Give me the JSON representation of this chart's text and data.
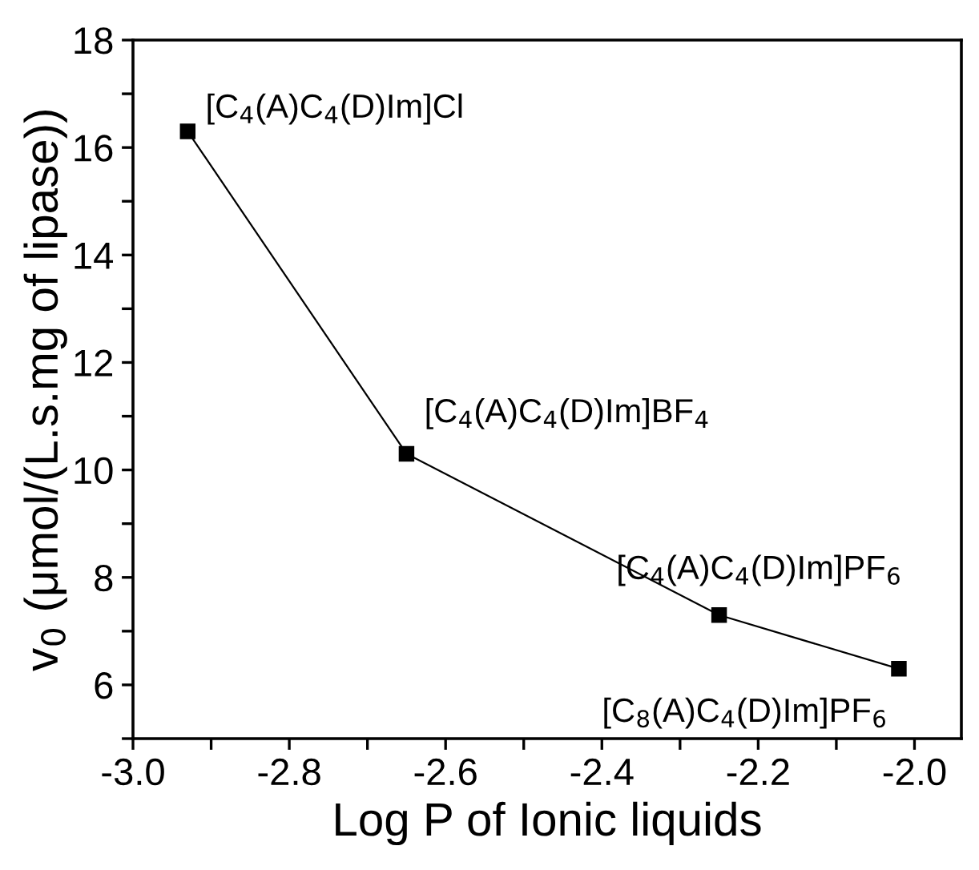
{
  "chart_data": {
    "type": "line",
    "xlabel": "Log P of Ionic liquids",
    "ylabel": "v$_{0}$ (μmol/(L.s.mg of lipase))",
    "x": [
      -2.93,
      -2.65,
      -2.25,
      -2.02
    ],
    "series": [
      {
        "color": "#000000",
        "values": [
          16.3,
          10.3,
          7.3,
          6.3
        ]
      }
    ],
    "marker": "square",
    "line_style": "solid",
    "grid": false,
    "legend": false,
    "xlim": [
      -3.0,
      -1.94
    ],
    "ylim": [
      5,
      18
    ],
    "xticks": [
      {
        "value": -3,
        "label": "-3.0"
      },
      {
        "value": -2.9,
        "label": null
      },
      -2.8,
      {
        "value": -2.7,
        "label": null
      },
      -2.6,
      {
        "value": -2.5,
        "label": null
      },
      -2.4,
      {
        "value": -2.3,
        "label": null
      },
      -2.2,
      {
        "value": -2.1,
        "label": null
      },
      {
        "value": -2,
        "label": "-2.0"
      }
    ],
    "yticks": [
      {
        "value": 5,
        "label": null
      },
      6,
      {
        "value": 7,
        "label": null
      },
      8,
      {
        "value": 9,
        "label": null
      },
      10,
      {
        "value": 11,
        "label": null
      },
      12,
      {
        "value": 13,
        "label": null
      },
      14,
      {
        "value": 15,
        "label": null
      },
      16,
      {
        "value": 17,
        "label": null
      },
      18
    ],
    "annotations": [
      {
        "text": "[C$_{4}$(A)C$_{4}$(D)Im]Cl",
        "x": -2.93,
        "y": 16.3
      },
      {
        "text": "[C$_{4}$(A)C$_{4}$(D)Im]BF$_{4}$",
        "x": -2.65,
        "y": 10.3
      },
      {
        "text": "[C$_{4}$(A)C$_{4}$(D)Im]PF$_{6}$",
        "x": -2.25,
        "y": 7.3
      },
      {
        "text": "[C$_{8}$(A)C$_{4}$(D)Im]PF$_{6}$",
        "x": -2.02,
        "y": 6.3
      }
    ]
  }
}
